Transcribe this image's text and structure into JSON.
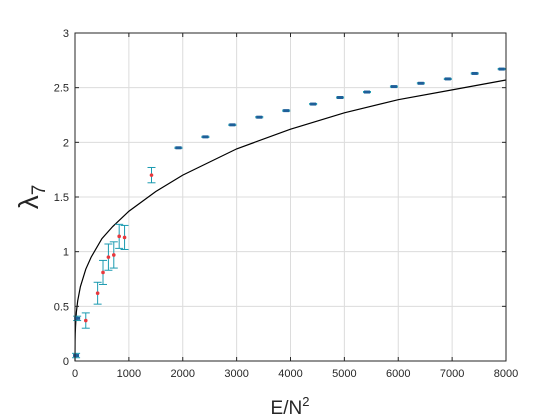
{
  "chart_data": {
    "type": "scatter",
    "title": "",
    "xlabel": {
      "base": "E/N",
      "sup": "2"
    },
    "ylabel": {
      "base": "λ",
      "sub": "7"
    },
    "xlim": [
      0,
      8000
    ],
    "ylim": [
      0,
      3
    ],
    "xticks": [
      0,
      1000,
      2000,
      3000,
      4000,
      5000,
      6000,
      7000,
      8000
    ],
    "yticks": [
      0,
      0.5,
      1,
      1.5,
      2,
      2.5,
      3
    ],
    "xtick_labels": [
      "0",
      "1000",
      "2000",
      "3000",
      "4000",
      "5000",
      "6000",
      "7000",
      "8000"
    ],
    "ytick_labels": [
      "0",
      "0.5",
      "1",
      "1.5",
      "2",
      "2.5",
      "3"
    ],
    "grid": true,
    "colors": {
      "points": "#1f5f99",
      "low_points": "#e8383d",
      "error_bars": "#1a9ab0",
      "curve": "#000000",
      "grid": "#dcdcdc",
      "axis": "#262626"
    },
    "series": [
      {
        "type": "errorbar",
        "points": [
          {
            "x": 20,
            "y": 0.05,
            "err": 0.02
          },
          {
            "x": 40,
            "y": 0.39,
            "err": 0.02
          },
          {
            "x": 200,
            "y": 0.37,
            "err": 0.07
          },
          {
            "x": 420,
            "y": 0.62,
            "err": 0.1
          },
          {
            "x": 520,
            "y": 0.81,
            "err": 0.11
          },
          {
            "x": 620,
            "y": 0.95,
            "err": 0.12
          },
          {
            "x": 720,
            "y": 0.97,
            "err": 0.12
          },
          {
            "x": 820,
            "y": 1.14,
            "err": 0.11
          },
          {
            "x": 920,
            "y": 1.13,
            "err": 0.11
          },
          {
            "x": 1420,
            "y": 1.7,
            "err": 0.07
          },
          {
            "x": 1920,
            "y": 1.95,
            "err": 0.005
          },
          {
            "x": 2420,
            "y": 2.05,
            "err": 0.005
          },
          {
            "x": 2920,
            "y": 2.16,
            "err": 0.005
          },
          {
            "x": 3420,
            "y": 2.23,
            "err": 0.005
          },
          {
            "x": 3920,
            "y": 2.29,
            "err": 0.005
          },
          {
            "x": 4420,
            "y": 2.35,
            "err": 0.005
          },
          {
            "x": 4920,
            "y": 2.41,
            "err": 0.005
          },
          {
            "x": 5420,
            "y": 2.46,
            "err": 0.005
          },
          {
            "x": 5920,
            "y": 2.51,
            "err": 0.005
          },
          {
            "x": 6420,
            "y": 2.54,
            "err": 0.005
          },
          {
            "x": 6920,
            "y": 2.58,
            "err": 0.005
          },
          {
            "x": 7420,
            "y": 2.63,
            "err": 0.005
          },
          {
            "x": 7920,
            "y": 2.67,
            "err": 0.005
          }
        ]
      },
      {
        "type": "line",
        "x": [
          0,
          2,
          5,
          10,
          25,
          50,
          100,
          200,
          300,
          500,
          700,
          1000,
          1500,
          2000,
          3000,
          4000,
          5000,
          6000,
          7000,
          8000
        ],
        "y": [
          0,
          0.178,
          0.25,
          0.316,
          0.445,
          0.55,
          0.68,
          0.84,
          0.95,
          1.12,
          1.23,
          1.37,
          1.55,
          1.7,
          1.94,
          2.12,
          2.27,
          2.39,
          2.48,
          2.57
        ]
      }
    ]
  }
}
